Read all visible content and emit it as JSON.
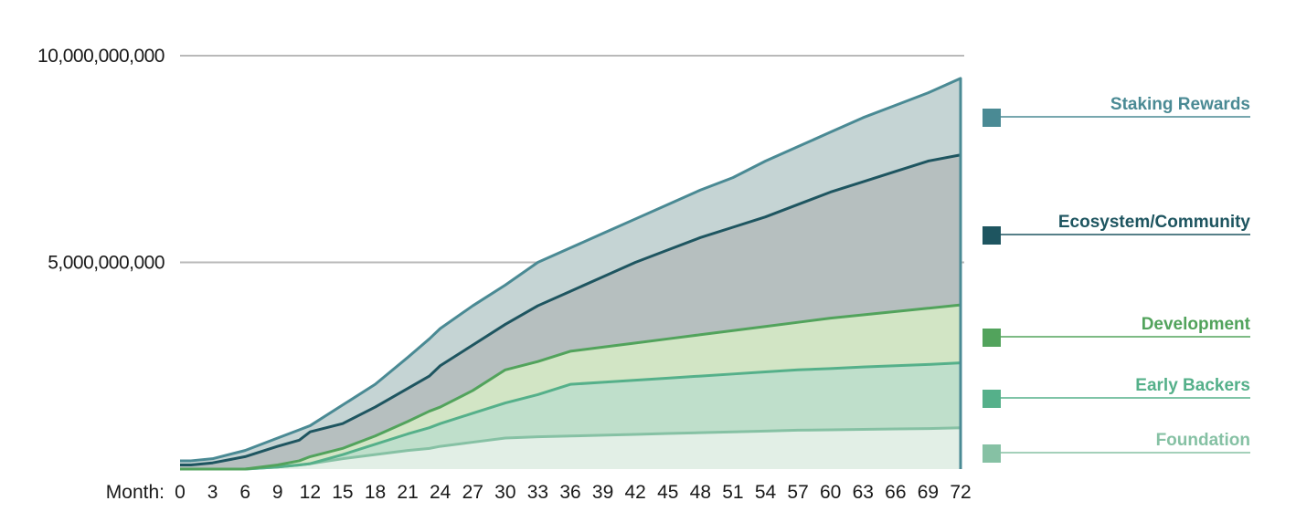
{
  "chart_data": {
    "type": "area",
    "stacked": true,
    "xlabel": "Month:",
    "x_ticks": [
      0,
      3,
      6,
      9,
      12,
      15,
      18,
      21,
      24,
      27,
      30,
      33,
      36,
      39,
      42,
      45,
      48,
      51,
      54,
      57,
      60,
      63,
      66,
      69,
      72
    ],
    "y_ticks": [
      {
        "value": 5000000000,
        "label": "5,000,000,000"
      },
      {
        "value": 10000000000,
        "label": "10,000,000,000"
      }
    ],
    "ylim": [
      0,
      10000000000
    ],
    "xlim": [
      0,
      72
    ],
    "grid": "horizontal",
    "legend_position": "right",
    "x": [
      0,
      1,
      3,
      6,
      9,
      11,
      12,
      15,
      18,
      21,
      23,
      24,
      27,
      30,
      33,
      36,
      39,
      42,
      45,
      48,
      51,
      54,
      57,
      60,
      63,
      66,
      69,
      72
    ],
    "series": [
      {
        "name": "Foundation",
        "color": "#86c1a4",
        "fill": "#e2efe6",
        "values": [
          0,
          0,
          0,
          0,
          50000000.0,
          100000000.0,
          130000000.0,
          250000000.0,
          350000000.0,
          450000000.0,
          500000000.0,
          550000000.0,
          650000000.0,
          750000000.0,
          780000000.0,
          800000000.0,
          820000000.0,
          840000000.0,
          860000000.0,
          880000000.0,
          900000000.0,
          920000000.0,
          940000000.0,
          950000000.0,
          960000000.0,
          970000000.0,
          980000000.0,
          1000000000.0
        ]
      },
      {
        "name": "Early Backers",
        "color": "#55b08a",
        "fill": "#bfdfcb",
        "values": [
          0,
          0,
          0,
          0,
          50000000.0,
          100000000.0,
          130000000.0,
          350000000.0,
          600000000.0,
          850000000.0,
          1000000000.0,
          1100000000.0,
          1350000000.0,
          1600000000.0,
          1800000000.0,
          2050000000.0,
          2100000000.0,
          2150000000.0,
          2200000000.0,
          2250000000.0,
          2300000000.0,
          2350000000.0,
          2400000000.0,
          2430000000.0,
          2470000000.0,
          2500000000.0,
          2530000000.0,
          2570000000.0
        ]
      },
      {
        "name": "Development",
        "color": "#52a35c",
        "fill": "#d2e5c5",
        "values": [
          0,
          0,
          0,
          0,
          100000000.0,
          200000000.0,
          300000000.0,
          500000000.0,
          800000000.0,
          1150000000.0,
          1400000000.0,
          1500000000.0,
          1900000000.0,
          2400000000.0,
          2600000000.0,
          2850000000.0,
          2950000000.0,
          3050000000.0,
          3150000000.0,
          3250000000.0,
          3350000000.0,
          3450000000.0,
          3550000000.0,
          3650000000.0,
          3730000000.0,
          3810000000.0,
          3890000000.0,
          3970000000.0
        ]
      },
      {
        "name": "Ecosystem/Community",
        "color": "#1e5560",
        "fill": "#b6bfbf",
        "values": [
          100000000.0,
          100000000.0,
          150000000.0,
          300000000.0,
          550000000.0,
          700000000.0,
          900000000.0,
          1100000000.0,
          1500000000.0,
          1950000000.0,
          2250000000.0,
          2500000000.0,
          3000000000.0,
          3500000000.0,
          3950000000.0,
          4300000000.0,
          4650000000.0,
          5000000000.0,
          5300000000.0,
          5600000000.0,
          5850000000.0,
          6100000000.0,
          6400000000.0,
          6700000000.0,
          6950000000.0,
          7200000000.0,
          7450000000.0,
          7600000000.0
        ]
      },
      {
        "name": "Staking Rewards",
        "color": "#4a8a94",
        "fill": "#c5d4d4",
        "values": [
          200000000.0,
          200000000.0,
          250000000.0,
          450000000.0,
          750000000.0,
          950000000.0,
          1050000000.0,
          1550000000.0,
          2050000000.0,
          2700000000.0,
          3150000000.0,
          3400000000.0,
          3950000000.0,
          4450000000.0,
          5000000000.0,
          5350000000.0,
          5700000000.0,
          6050000000.0,
          6400000000.0,
          6750000000.0,
          7050000000.0,
          7450000000.0,
          7800000000.0,
          8150000000.0,
          8500000000.0,
          8800000000.0,
          9100000000.0,
          9450000000.0
        ]
      }
    ],
    "legend": [
      {
        "label": "Staking Rewards",
        "color": "#4a8a94"
      },
      {
        "label": "Ecosystem/Community",
        "color": "#1e5560"
      },
      {
        "label": "Development",
        "color": "#52a35c"
      },
      {
        "label": "Early Backers",
        "color": "#55b08a"
      },
      {
        "label": "Foundation",
        "color": "#86c1a4"
      }
    ]
  }
}
